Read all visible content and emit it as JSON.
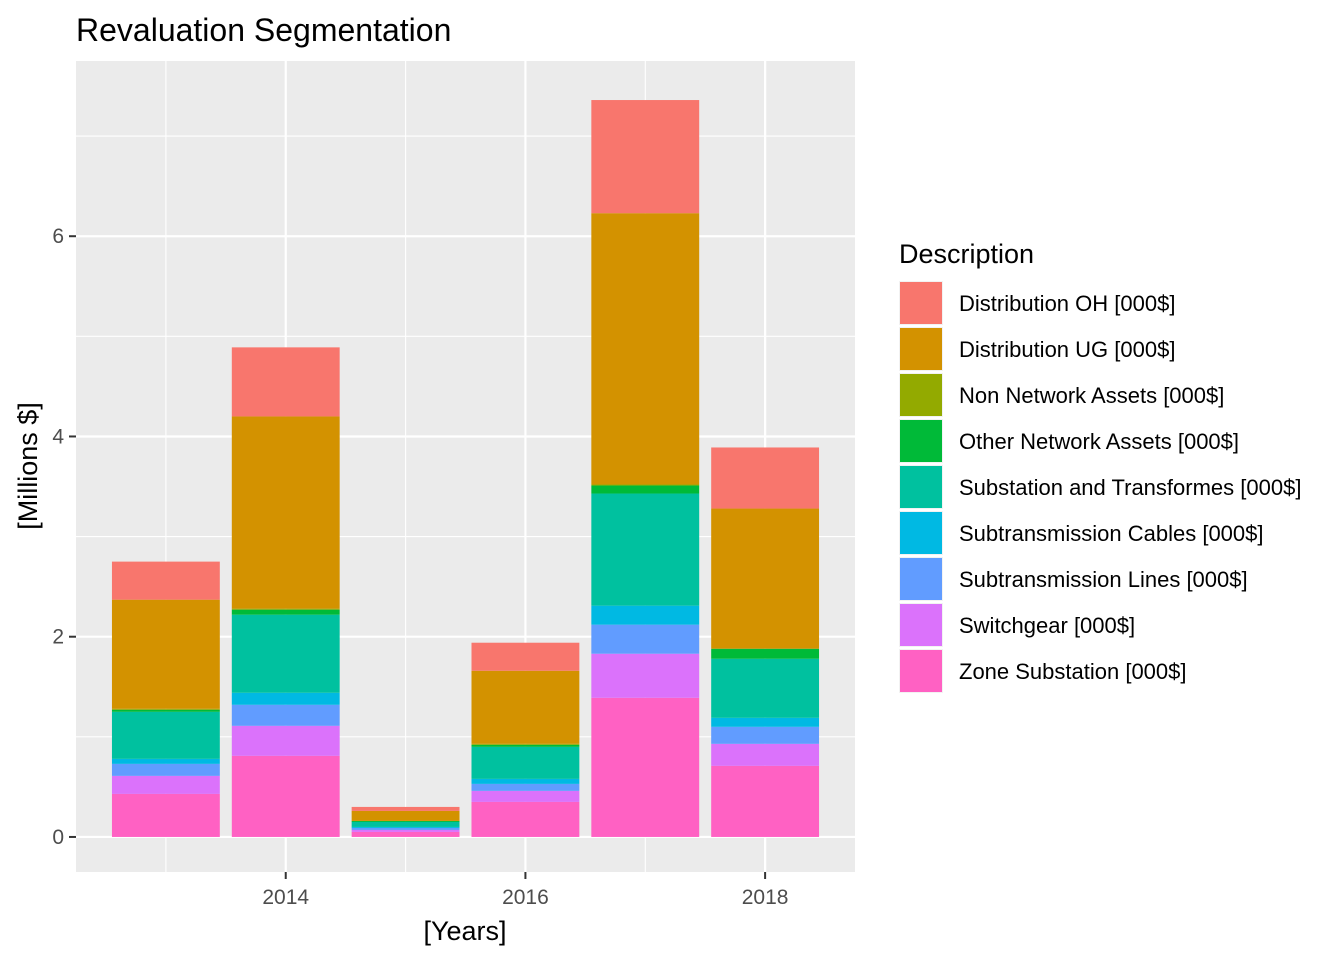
{
  "chart_data": {
    "type": "bar",
    "stacked": true,
    "title": "Revaluation Segmentation",
    "xlabel": "[Years]",
    "ylabel": "[Millions $]",
    "legend_title": "Description",
    "legend_position": "right",
    "grid": true,
    "xlim": [
      2012.25,
      2018.75
    ],
    "ylim": [
      -0.35,
      7.75
    ],
    "x_ticks": [
      2014,
      2016,
      2018
    ],
    "x_tick_labels": [
      "2014",
      "2016",
      "2018"
    ],
    "y_ticks": [
      0,
      2,
      4,
      6
    ],
    "y_tick_labels": [
      "0",
      "2",
      "4",
      "6"
    ],
    "x": [
      2013,
      2014,
      2015,
      2016,
      2017,
      2018
    ],
    "series": [
      {
        "name": "Zone Substation [000$]",
        "color": "#FF61C3",
        "values": [
          0.43,
          0.81,
          0.05,
          0.35,
          1.39,
          0.71
        ]
      },
      {
        "name": "Switchgear [000$]",
        "color": "#DB72FB",
        "values": [
          0.18,
          0.3,
          0.02,
          0.11,
          0.44,
          0.22
        ]
      },
      {
        "name": "Subtransmission Lines [000$]",
        "color": "#619CFF",
        "values": [
          0.12,
          0.21,
          0.02,
          0.07,
          0.29,
          0.17
        ]
      },
      {
        "name": "Subtransmission Cables [000$]",
        "color": "#00B9E3",
        "values": [
          0.05,
          0.12,
          0.01,
          0.05,
          0.19,
          0.09
        ]
      },
      {
        "name": "Substation and Transformes [000$]",
        "color": "#00C19F",
        "values": [
          0.47,
          0.78,
          0.05,
          0.32,
          1.12,
          0.59
        ]
      },
      {
        "name": "Other Network Assets [000$]",
        "color": "#00BA38",
        "values": [
          0.02,
          0.05,
          0.01,
          0.02,
          0.08,
          0.1
        ]
      },
      {
        "name": "Non Network Assets [000$]",
        "color": "#93AA00",
        "values": [
          0.01,
          0.01,
          0.0,
          0.01,
          0.01,
          0.0
        ]
      },
      {
        "name": "Distribution UG [000$]",
        "color": "#D39200",
        "values": [
          1.09,
          1.92,
          0.1,
          0.73,
          2.71,
          1.4
        ]
      },
      {
        "name": "Distribution OH [000$]",
        "color": "#F8766D",
        "values": [
          0.38,
          0.69,
          0.04,
          0.28,
          1.13,
          0.61
        ]
      }
    ],
    "legend_order": [
      "Distribution OH [000$]",
      "Distribution UG [000$]",
      "Non Network Assets [000$]",
      "Other Network Assets [000$]",
      "Substation and Transformes [000$]",
      "Subtransmission Cables [000$]",
      "Subtransmission Lines [000$]",
      "Switchgear [000$]",
      "Zone Substation [000$]"
    ]
  }
}
